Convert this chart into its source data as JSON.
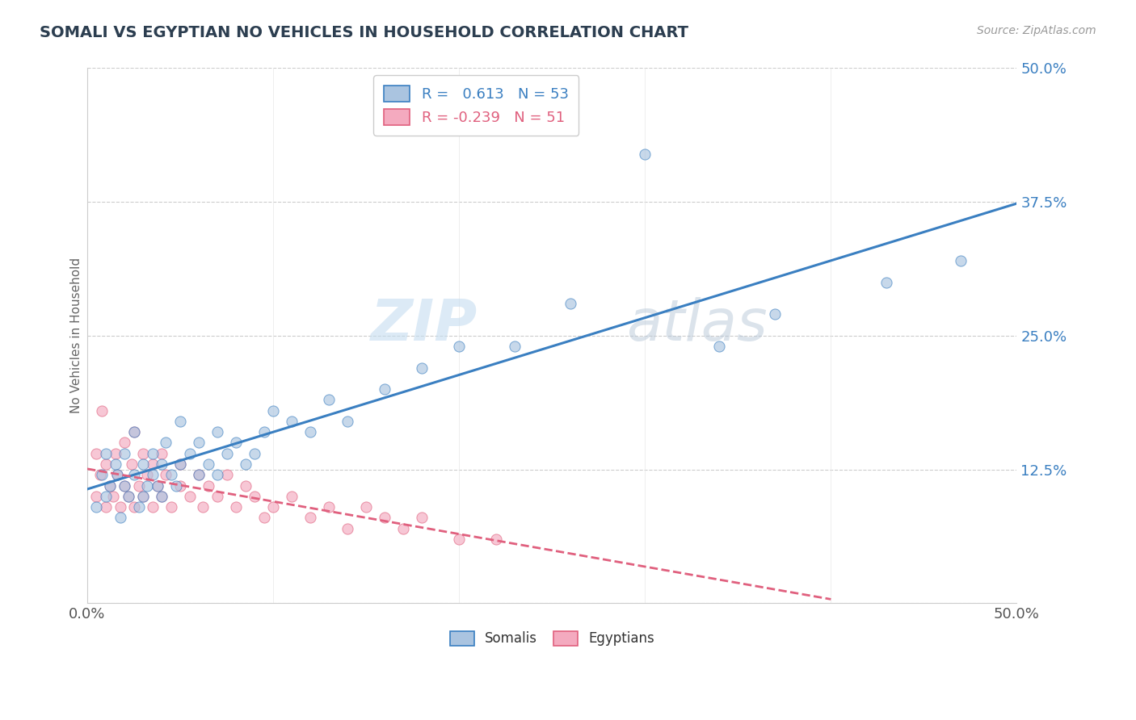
{
  "title": "SOMALI VS EGYPTIAN NO VEHICLES IN HOUSEHOLD CORRELATION CHART",
  "source": "Source: ZipAtlas.com",
  "ylabel": "No Vehicles in Household",
  "xlim": [
    0.0,
    0.5
  ],
  "ylim": [
    0.0,
    0.5
  ],
  "yticks": [
    0.0,
    0.125,
    0.25,
    0.375,
    0.5
  ],
  "ytick_labels": [
    "",
    "12.5%",
    "25.0%",
    "37.5%",
    "50.0%"
  ],
  "somali_R": 0.613,
  "somali_N": 53,
  "egyptian_R": -0.239,
  "egyptian_N": 51,
  "somali_color": "#aac4e0",
  "egyptian_color": "#f4aabf",
  "somali_line_color": "#3a7fc1",
  "egyptian_line_color": "#e0607e",
  "legend_somali_label": "Somalis",
  "legend_egyptian_label": "Egyptians",
  "watermark": "ZIPatlas",
  "background_color": "#ffffff",
  "grid_color": "#cccccc",
  "somali_x": [
    0.005,
    0.008,
    0.01,
    0.01,
    0.012,
    0.015,
    0.016,
    0.018,
    0.02,
    0.02,
    0.022,
    0.025,
    0.025,
    0.028,
    0.03,
    0.03,
    0.032,
    0.035,
    0.035,
    0.038,
    0.04,
    0.04,
    0.042,
    0.045,
    0.048,
    0.05,
    0.05,
    0.055,
    0.06,
    0.06,
    0.065,
    0.07,
    0.07,
    0.075,
    0.08,
    0.085,
    0.09,
    0.095,
    0.1,
    0.11,
    0.12,
    0.13,
    0.14,
    0.16,
    0.18,
    0.2,
    0.23,
    0.26,
    0.3,
    0.34,
    0.37,
    0.43,
    0.47
  ],
  "somali_y": [
    0.09,
    0.12,
    0.1,
    0.14,
    0.11,
    0.13,
    0.12,
    0.08,
    0.11,
    0.14,
    0.1,
    0.12,
    0.16,
    0.09,
    0.1,
    0.13,
    0.11,
    0.14,
    0.12,
    0.11,
    0.1,
    0.13,
    0.15,
    0.12,
    0.11,
    0.13,
    0.17,
    0.14,
    0.12,
    0.15,
    0.13,
    0.16,
    0.12,
    0.14,
    0.15,
    0.13,
    0.14,
    0.16,
    0.18,
    0.17,
    0.16,
    0.19,
    0.17,
    0.2,
    0.22,
    0.24,
    0.24,
    0.28,
    0.42,
    0.24,
    0.27,
    0.3,
    0.32
  ],
  "egyptian_x": [
    0.005,
    0.005,
    0.007,
    0.008,
    0.01,
    0.01,
    0.012,
    0.014,
    0.015,
    0.016,
    0.018,
    0.02,
    0.02,
    0.022,
    0.024,
    0.025,
    0.025,
    0.028,
    0.03,
    0.03,
    0.032,
    0.035,
    0.035,
    0.038,
    0.04,
    0.04,
    0.042,
    0.045,
    0.05,
    0.05,
    0.055,
    0.06,
    0.062,
    0.065,
    0.07,
    0.075,
    0.08,
    0.085,
    0.09,
    0.095,
    0.1,
    0.11,
    0.12,
    0.13,
    0.14,
    0.15,
    0.16,
    0.17,
    0.18,
    0.2,
    0.22
  ],
  "egyptian_y": [
    0.1,
    0.14,
    0.12,
    0.18,
    0.09,
    0.13,
    0.11,
    0.1,
    0.14,
    0.12,
    0.09,
    0.11,
    0.15,
    0.1,
    0.13,
    0.09,
    0.16,
    0.11,
    0.1,
    0.14,
    0.12,
    0.09,
    0.13,
    0.11,
    0.1,
    0.14,
    0.12,
    0.09,
    0.11,
    0.13,
    0.1,
    0.12,
    0.09,
    0.11,
    0.1,
    0.12,
    0.09,
    0.11,
    0.1,
    0.08,
    0.09,
    0.1,
    0.08,
    0.09,
    0.07,
    0.09,
    0.08,
    0.07,
    0.08,
    0.06,
    0.06
  ],
  "somali_marker_size": 90,
  "egyptian_marker_size": 90
}
